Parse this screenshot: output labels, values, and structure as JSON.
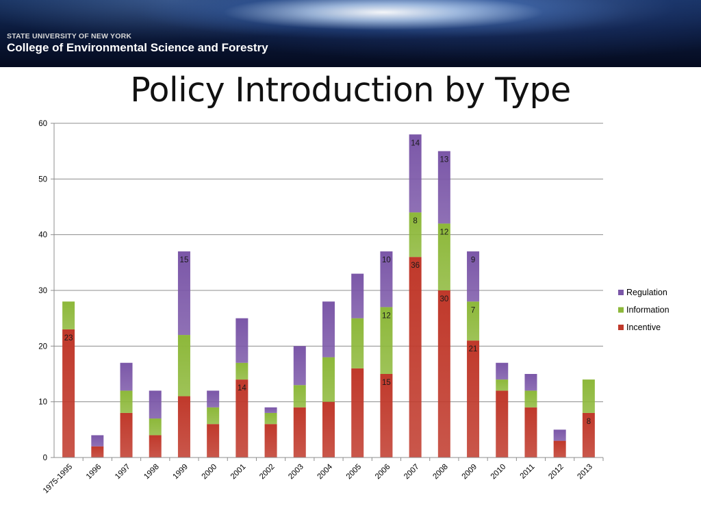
{
  "banner": {
    "line1": "STATE UNIVERSITY OF NEW YORK",
    "line2": "College of Environmental Science and Forestry"
  },
  "slide": {
    "title": "Policy Introduction by Type"
  },
  "chart_data": {
    "type": "bar",
    "stacked": true,
    "title": "",
    "xlabel": "",
    "ylabel": "",
    "ylim": [
      0,
      60
    ],
    "yticks": [
      0,
      10,
      20,
      30,
      40,
      50,
      60
    ],
    "grid": true,
    "legend_position": "right",
    "categories": [
      "1975-1995",
      "1996",
      "1997",
      "1998",
      "1999",
      "2000",
      "2001",
      "2002",
      "2003",
      "2004",
      "2005",
      "2006",
      "2007",
      "2008",
      "2009",
      "2010",
      "2011",
      "2012",
      "2013"
    ],
    "series": [
      {
        "name": "Incentive",
        "color": "#c0392b",
        "values": [
          23,
          2,
          8,
          4,
          11,
          6,
          14,
          6,
          9,
          10,
          16,
          15,
          36,
          30,
          21,
          12,
          9,
          3,
          8
        ],
        "labels": [
          "23",
          null,
          null,
          null,
          null,
          null,
          "14",
          null,
          null,
          null,
          null,
          "15",
          "36",
          "30",
          "21",
          null,
          null,
          null,
          "8"
        ]
      },
      {
        "name": "Information",
        "color": "#8db83a",
        "values": [
          5,
          0,
          4,
          3,
          11,
          3,
          3,
          2,
          4,
          8,
          9,
          12,
          8,
          12,
          7,
          2,
          3,
          0,
          6
        ],
        "labels": [
          null,
          null,
          null,
          null,
          null,
          null,
          null,
          null,
          null,
          null,
          null,
          "12",
          "8",
          "12",
          "7",
          null,
          null,
          null,
          null
        ]
      },
      {
        "name": "Regulation",
        "color": "#7b57a8",
        "values": [
          0,
          2,
          5,
          5,
          15,
          3,
          8,
          1,
          7,
          10,
          8,
          10,
          14,
          13,
          9,
          3,
          3,
          2,
          0
        ],
        "labels": [
          null,
          null,
          null,
          null,
          "15",
          null,
          null,
          null,
          null,
          null,
          null,
          "10",
          "14",
          "13",
          "9",
          null,
          null,
          null,
          null
        ]
      }
    ],
    "legend_order": [
      "Regulation",
      "Information",
      "Incentive"
    ]
  }
}
